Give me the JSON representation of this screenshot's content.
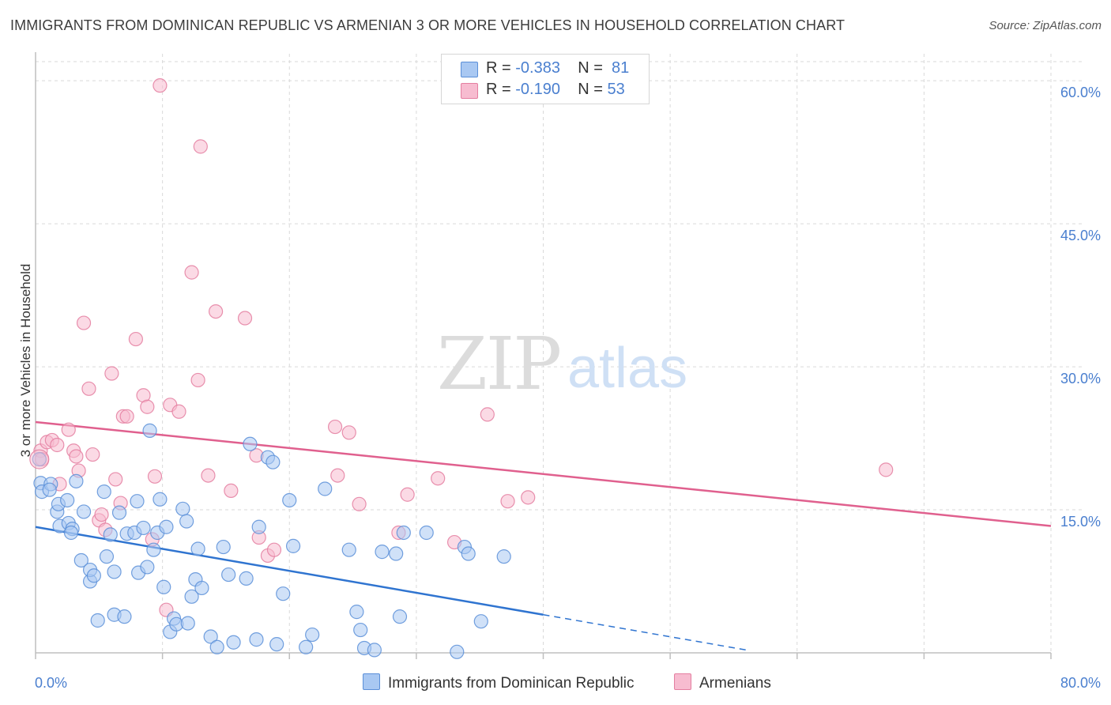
{
  "title": "IMMIGRANTS FROM DOMINICAN REPUBLIC VS ARMENIAN 3 OR MORE VEHICLES IN HOUSEHOLD CORRELATION CHART",
  "source": "Source: ZipAtlas.com",
  "watermark": {
    "zip": "ZIP",
    "atlas": "atlas"
  },
  "legend": {
    "series1": {
      "r_label": "R =",
      "r_value": "-0.383",
      "n_label": "N =",
      "n_value": "81"
    },
    "series2": {
      "r_label": "R =",
      "r_value": "-0.190",
      "n_label": "N =",
      "n_value": "53"
    }
  },
  "colors": {
    "blue_fill": "#a9c8f2",
    "blue_stroke": "#5b8fd8",
    "blue_line": "#2f74d0",
    "pink_fill": "#f7bcd0",
    "pink_stroke": "#e47ea0",
    "pink_line": "#e0608e",
    "axis_text": "#4a7fcf",
    "grid": "#d9d9d9"
  },
  "chart_data": {
    "type": "scatter",
    "title": "IMMIGRANTS FROM DOMINICAN REPUBLIC VS ARMENIAN 3 OR MORE VEHICLES IN HOUSEHOLD CORRELATION CHART",
    "xlabel": "",
    "ylabel": "3 or more Vehicles in Household",
    "xlim": [
      0,
      80
    ],
    "ylim": [
      0,
      62
    ],
    "x_tick_labels": [
      "0.0%",
      "80.0%"
    ],
    "y_ticks": [
      15,
      30,
      45,
      60
    ],
    "y_tick_labels": [
      "15.0%",
      "30.0%",
      "45.0%",
      "60.0%"
    ],
    "grid": true,
    "legend_position": "top-center",
    "series": [
      {
        "name": "Immigrants from Dominican Republic",
        "color": "#a9c8f2",
        "r": -0.383,
        "n": 81,
        "trend": {
          "x0": 0,
          "y0": 13.2,
          "x1": 40,
          "y1": 4.0,
          "dashed_to_x": 56,
          "dashed_to_y": 0.3
        },
        "points": [
          [
            0.3,
            20.3
          ],
          [
            0.4,
            17.8
          ],
          [
            0.5,
            16.9
          ],
          [
            1.2,
            17.7
          ],
          [
            1.1,
            17.1
          ],
          [
            1.7,
            14.8
          ],
          [
            1.8,
            15.6
          ],
          [
            1.9,
            13.3
          ],
          [
            2.5,
            16.0
          ],
          [
            2.6,
            13.6
          ],
          [
            2.9,
            13.0
          ],
          [
            2.8,
            12.6
          ],
          [
            3.2,
            18.0
          ],
          [
            3.6,
            9.7
          ],
          [
            3.8,
            14.8
          ],
          [
            4.3,
            7.5
          ],
          [
            4.3,
            8.7
          ],
          [
            4.6,
            8.1
          ],
          [
            4.9,
            3.4
          ],
          [
            5.4,
            16.9
          ],
          [
            5.6,
            10.1
          ],
          [
            5.9,
            12.4
          ],
          [
            6.2,
            4.0
          ],
          [
            6.2,
            8.5
          ],
          [
            6.6,
            14.7
          ],
          [
            7.0,
            3.8
          ],
          [
            7.2,
            12.5
          ],
          [
            7.8,
            12.6
          ],
          [
            8.0,
            15.9
          ],
          [
            8.1,
            8.4
          ],
          [
            8.5,
            13.1
          ],
          [
            8.8,
            9.0
          ],
          [
            9.0,
            23.3
          ],
          [
            9.3,
            10.8
          ],
          [
            9.6,
            12.6
          ],
          [
            9.8,
            16.1
          ],
          [
            10.1,
            6.9
          ],
          [
            10.3,
            13.2
          ],
          [
            10.6,
            2.2
          ],
          [
            10.9,
            3.6
          ],
          [
            11.1,
            3.0
          ],
          [
            11.6,
            15.1
          ],
          [
            11.9,
            13.8
          ],
          [
            12.0,
            3.1
          ],
          [
            12.3,
            5.9
          ],
          [
            12.6,
            7.7
          ],
          [
            12.8,
            10.9
          ],
          [
            13.1,
            6.8
          ],
          [
            13.8,
            1.7
          ],
          [
            14.3,
            0.6
          ],
          [
            14.8,
            11.1
          ],
          [
            15.2,
            8.2
          ],
          [
            15.6,
            1.1
          ],
          [
            16.6,
            7.8
          ],
          [
            16.9,
            21.9
          ],
          [
            17.4,
            1.4
          ],
          [
            17.6,
            13.2
          ],
          [
            18.3,
            20.5
          ],
          [
            18.7,
            20.0
          ],
          [
            19.0,
            0.9
          ],
          [
            19.5,
            6.2
          ],
          [
            20.3,
            11.2
          ],
          [
            21.3,
            0.6
          ],
          [
            21.8,
            1.9
          ],
          [
            22.8,
            17.2
          ],
          [
            24.7,
            10.8
          ],
          [
            25.3,
            4.3
          ],
          [
            25.6,
            2.4
          ],
          [
            25.9,
            0.5
          ],
          [
            26.7,
            0.3
          ],
          [
            27.3,
            10.6
          ],
          [
            28.4,
            10.4
          ],
          [
            28.7,
            3.8
          ],
          [
            29.0,
            12.6
          ],
          [
            30.8,
            12.6
          ],
          [
            33.2,
            0.1
          ],
          [
            33.8,
            11.1
          ],
          [
            34.1,
            10.4
          ],
          [
            35.1,
            3.3
          ],
          [
            36.9,
            10.1
          ],
          [
            20.0,
            16.0
          ]
        ]
      },
      {
        "name": "Armenians",
        "color": "#f7bcd0",
        "r": -0.19,
        "n": 53,
        "trend": {
          "x0": 0,
          "y0": 24.2,
          "x1": 80,
          "y1": 13.3
        },
        "points": [
          [
            0.4,
            21.2
          ],
          [
            0.5,
            20.3
          ],
          [
            0.9,
            22.1
          ],
          [
            1.3,
            22.3
          ],
          [
            1.7,
            21.8
          ],
          [
            1.9,
            17.7
          ],
          [
            2.6,
            23.4
          ],
          [
            3.0,
            21.2
          ],
          [
            3.2,
            20.6
          ],
          [
            3.4,
            19.1
          ],
          [
            3.8,
            34.6
          ],
          [
            4.2,
            27.7
          ],
          [
            4.5,
            20.8
          ],
          [
            5.0,
            13.9
          ],
          [
            5.2,
            14.5
          ],
          [
            5.5,
            12.9
          ],
          [
            6.0,
            29.3
          ],
          [
            6.3,
            18.2
          ],
          [
            6.7,
            15.7
          ],
          [
            6.9,
            24.8
          ],
          [
            7.2,
            24.8
          ],
          [
            7.9,
            32.9
          ],
          [
            8.5,
            27.0
          ],
          [
            8.8,
            25.8
          ],
          [
            9.2,
            11.9
          ],
          [
            9.4,
            18.5
          ],
          [
            9.8,
            59.5
          ],
          [
            10.3,
            4.5
          ],
          [
            10.6,
            26.0
          ],
          [
            11.3,
            25.3
          ],
          [
            12.3,
            39.9
          ],
          [
            12.8,
            28.6
          ],
          [
            13.0,
            53.1
          ],
          [
            13.6,
            18.6
          ],
          [
            14.2,
            35.8
          ],
          [
            15.4,
            17.0
          ],
          [
            16.5,
            35.1
          ],
          [
            17.4,
            20.7
          ],
          [
            17.6,
            12.1
          ],
          [
            18.3,
            10.2
          ],
          [
            18.8,
            10.8
          ],
          [
            23.6,
            23.7
          ],
          [
            23.8,
            18.6
          ],
          [
            24.7,
            23.1
          ],
          [
            25.5,
            15.6
          ],
          [
            28.6,
            12.6
          ],
          [
            29.3,
            16.6
          ],
          [
            31.7,
            18.3
          ],
          [
            33.0,
            11.6
          ],
          [
            35.6,
            25.0
          ],
          [
            37.2,
            15.9
          ],
          [
            38.8,
            16.3
          ],
          [
            67.0,
            19.2
          ]
        ]
      }
    ]
  },
  "bottom_legend": {
    "series1": "Immigrants from Dominican Republic",
    "series2": "Armenians"
  }
}
